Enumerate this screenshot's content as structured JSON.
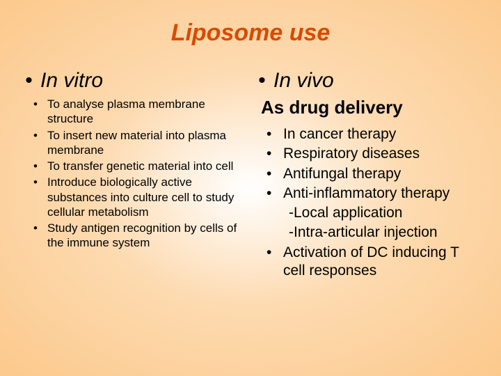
{
  "title": "Liposome use",
  "left": {
    "heading": "In vitro",
    "items": [
      "To analyse plasma membrane structure",
      "To insert new material into plasma membrane",
      "To transfer genetic material into cell",
      "Introduce biologically active substances into culture cell to study cellular metabolism",
      "Study antigen recognition by cells of the immune system"
    ]
  },
  "right": {
    "heading": "In vivo",
    "subheading": "As drug delivery",
    "items": [
      "In cancer therapy",
      "Respiratory diseases",
      "Antifungal therapy",
      "Anti-inflammatory therapy"
    ],
    "subitems": [
      "-Local application",
      "-Intra-articular injection"
    ],
    "items2": [
      "Activation of DC inducing T cell responses"
    ]
  },
  "style": {
    "title_color": "#d94a00",
    "background_inner": "#ffffff",
    "background_outer": "#fcc98c",
    "title_fontsize": 34,
    "heading_fontsize": 30,
    "subheading_fontsize": 26,
    "left_item_fontsize": 17,
    "right_item_fontsize": 21
  }
}
